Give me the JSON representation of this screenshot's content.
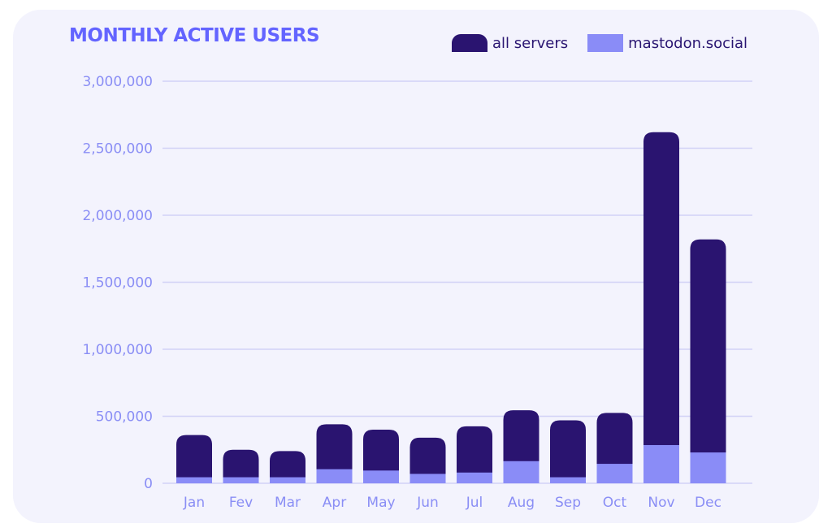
{
  "colors": {
    "background": "#ffffff",
    "card": "#f3f3fd",
    "title": "#6364ff",
    "all_servers": "#2a1470",
    "mastodon_social": "#8a8cf7",
    "gridline": "#d2d2f6",
    "axis_text": "#8a8ef5",
    "legend_text": "#2a1672"
  },
  "chart_data": {
    "type": "bar",
    "title": "MONTHLY ACTIVE USERS",
    "xlabel": "",
    "ylabel": "",
    "ylim": [
      0,
      3000000
    ],
    "yticks": [
      0,
      500000,
      1000000,
      1500000,
      2000000,
      2500000,
      3000000
    ],
    "ytick_labels": [
      "0",
      "500,000",
      "1,000,000",
      "1,500,000",
      "2,000,000",
      "2,500,000",
      "3,000,000"
    ],
    "grid": true,
    "legend_position": "top-right",
    "categories": [
      "Jan",
      "Fev",
      "Mar",
      "Apr",
      "May",
      "Jun",
      "Jul",
      "Aug",
      "Sep",
      "Oct",
      "Nov",
      "Dec"
    ],
    "series": [
      {
        "name": "all servers",
        "color": "#2a1470",
        "values": [
          360000,
          250000,
          240000,
          440000,
          400000,
          340000,
          425000,
          545000,
          470000,
          525000,
          2620000,
          1820000
        ]
      },
      {
        "name": "mastodon.social",
        "color": "#8a8cf7",
        "values": [
          45000,
          45000,
          45000,
          105000,
          95000,
          70000,
          80000,
          165000,
          45000,
          145000,
          285000,
          230000
        ]
      }
    ]
  }
}
